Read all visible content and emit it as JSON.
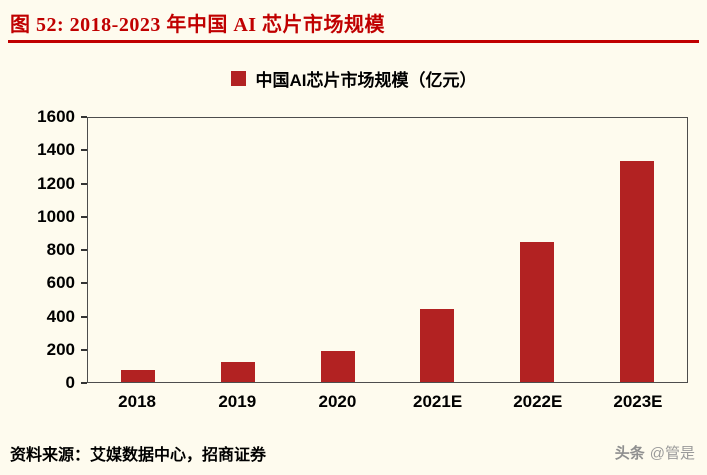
{
  "header": {
    "title": "图 52:  2018-2023 年中国 AI 芯片市场规模"
  },
  "legend": {
    "label": "中国AI芯片市场规模（亿元）"
  },
  "chart_data": {
    "type": "bar",
    "title": "中国AI芯片市场规模（亿元）",
    "categories": [
      "2018",
      "2019",
      "2020",
      "2021E",
      "2022E",
      "2023E"
    ],
    "values": [
      70,
      120,
      190,
      440,
      850,
      1340
    ],
    "xlabel": "",
    "ylabel": "",
    "ylim": [
      0,
      1600
    ],
    "yticks": [
      0,
      200,
      400,
      600,
      800,
      1000,
      1200,
      1400,
      1600
    ],
    "grid": false,
    "legend_position": "top",
    "bar_color": "#B22222"
  },
  "footer": {
    "source": "资料来源：艾媒数据中心，招商证券"
  },
  "watermark": {
    "brand": "头条",
    "handle": "@管是"
  },
  "colors": {
    "accent_red": "#C00000",
    "bar_red": "#B22222",
    "background": "#FEFBEE"
  }
}
